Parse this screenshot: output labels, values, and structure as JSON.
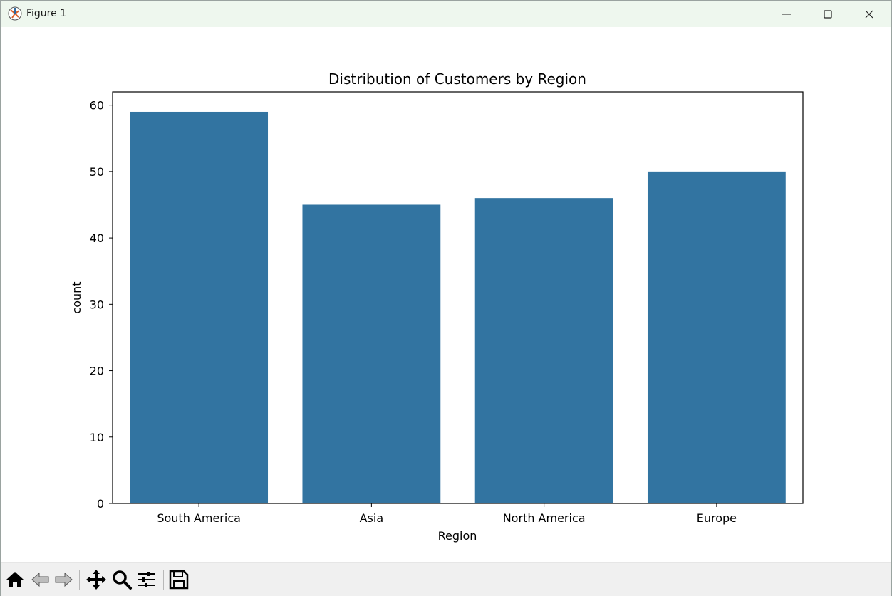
{
  "window": {
    "title": "Figure 1",
    "icons": [
      "figure-app-icon",
      "minimize-icon",
      "maximize-icon",
      "close-icon"
    ]
  },
  "toolbar": {
    "tools": [
      "home-icon",
      "back-icon",
      "forward-icon",
      "pan-icon",
      "zoom-icon",
      "configure-subplots-icon",
      "save-icon"
    ]
  },
  "colors": {
    "bar": "#3274a1",
    "titlebar": "#eef7ee",
    "toolbar": "#f0f0f0"
  },
  "chart_data": {
    "type": "bar",
    "title": "Distribution of Customers by Region",
    "xlabel": "Region",
    "ylabel": "count",
    "categories": [
      "South America",
      "Asia",
      "North America",
      "Europe"
    ],
    "values": [
      59,
      45,
      46,
      50
    ],
    "ylim": [
      0,
      62
    ],
    "yticks": [
      0,
      10,
      20,
      30,
      40,
      50,
      60
    ],
    "grid": false
  }
}
